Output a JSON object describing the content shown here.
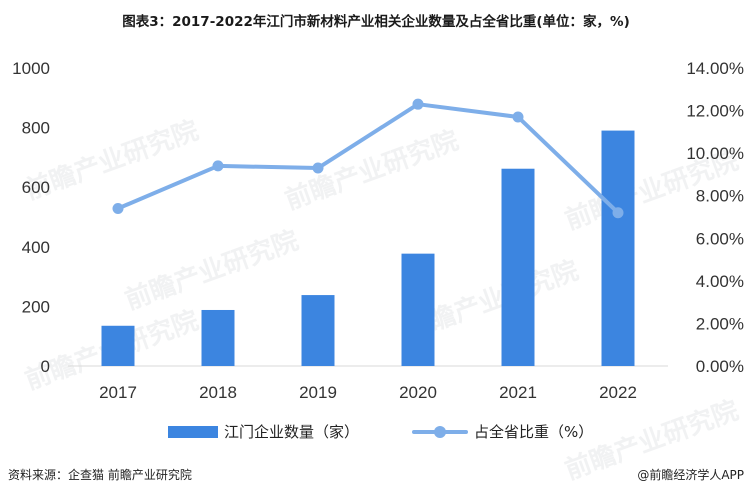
{
  "title": "图表3：2017-2022年江门市新材料产业相关企业数量及占全省比重(单位：家，%)",
  "chart_data": {
    "type": "bar",
    "categories": [
      "2017",
      "2018",
      "2019",
      "2020",
      "2021",
      "2022"
    ],
    "series": [
      {
        "name": "江门企业数量（家）",
        "type": "bar",
        "axis": "left",
        "color": "#3c85e0",
        "values": [
          135,
          188,
          238,
          377,
          662,
          790
        ]
      },
      {
        "name": "占全省比重（%）",
        "type": "line",
        "axis": "right",
        "color": "#7eaee9",
        "values": [
          7.4,
          9.4,
          9.3,
          12.3,
          11.7,
          7.2
        ]
      }
    ],
    "ylim": [
      0,
      1000
    ],
    "yticks": [
      "0",
      "200",
      "400",
      "600",
      "800",
      "1000"
    ],
    "y2lim": [
      0,
      14
    ],
    "y2ticks": [
      "0.00%",
      "2.00%",
      "4.00%",
      "6.00%",
      "8.00%",
      "10.00%",
      "12.00%",
      "14.00%"
    ],
    "grid": false,
    "legend": "bottom"
  },
  "watermark": "前瞻产业研究院",
  "footer": {
    "source": "资料来源：企查猫 前瞻产业研究院",
    "brand": "@前瞻经济学人APP"
  }
}
